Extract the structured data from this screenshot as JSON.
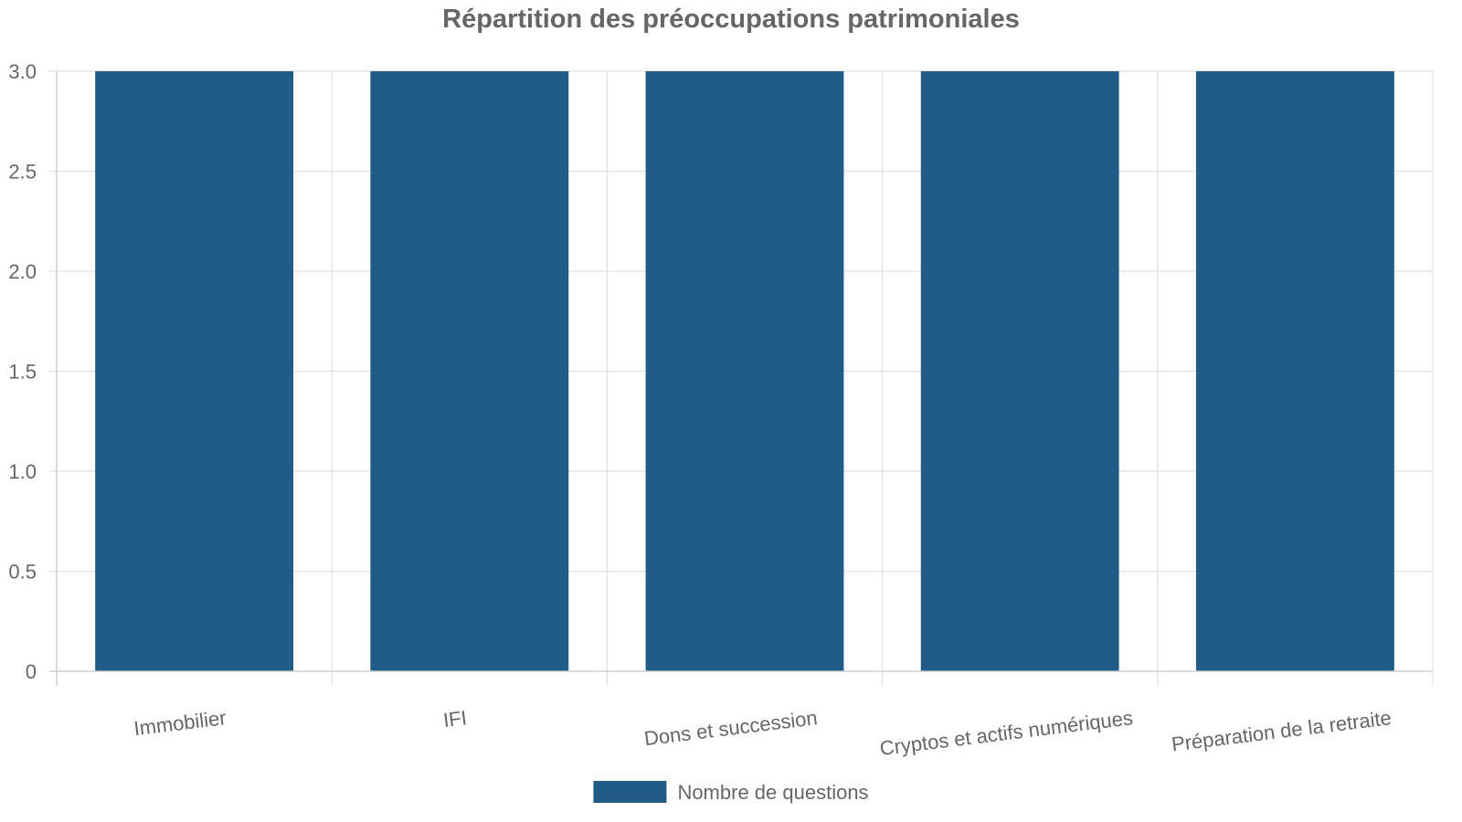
{
  "chart_data": {
    "type": "bar",
    "title": "Répartition des préoccupations patrimoniales",
    "categories": [
      "Immobilier",
      "IFI",
      "Dons et succession",
      "Cryptos et actifs numériques",
      "Préparation de la retraite"
    ],
    "series": [
      {
        "name": "Nombre de questions",
        "values": [
          3,
          3,
          3,
          3,
          3
        ],
        "color": "#205c85"
      }
    ],
    "ylim": [
      0,
      3
    ],
    "yticks": [
      "0",
      "0.5",
      "1.0",
      "1.5",
      "2.0",
      "2.5",
      "3.0"
    ],
    "grid": true,
    "legend_position": "bottom"
  }
}
